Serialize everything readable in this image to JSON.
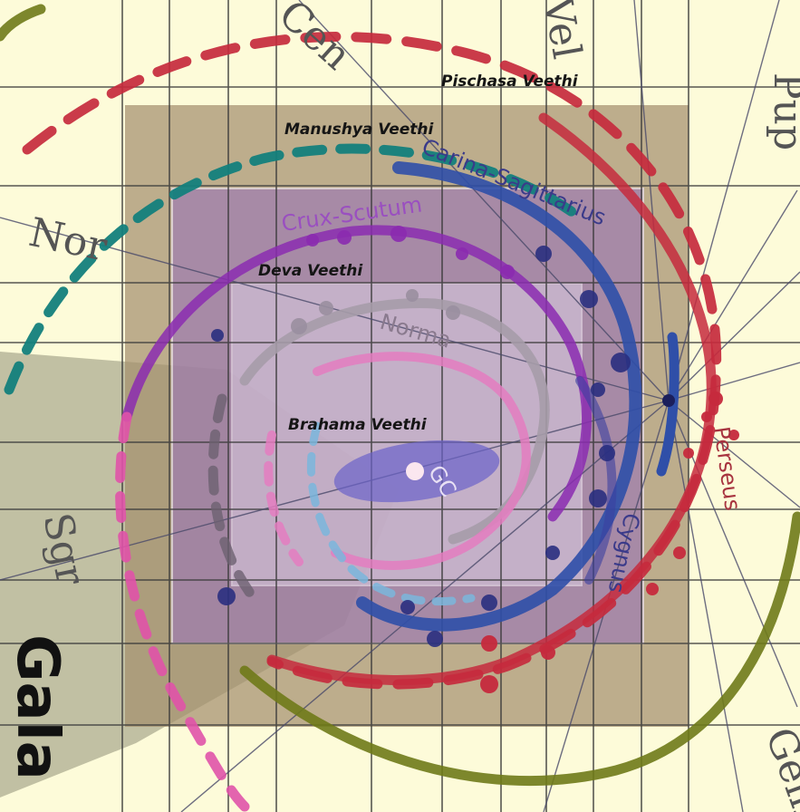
{
  "zones": [
    {
      "key": "pischasa",
      "label": "Pischasa  Veethi"
    },
    {
      "key": "manushya",
      "label": "Manushya Veethi"
    },
    {
      "key": "deva",
      "label": "Deva Veethi"
    },
    {
      "key": "brahama",
      "label": "Brahama Veethi"
    }
  ],
  "arms": {
    "carina_sagittarius": "Carina-Sagittarius",
    "crux_scutum": "Crux-Scutum",
    "norma": "Norma",
    "perseus": "Perseus",
    "cygnus": "Cygnus",
    "gc": "GC"
  },
  "constellations": {
    "cen": "Cen",
    "nor": "Nor",
    "sgr": "Sgr",
    "pup": "Pup",
    "gem": "Gem",
    "vel": "Vel"
  },
  "corner_text": "Gala",
  "colors": {
    "background": "#fdfbd9",
    "pischasa_zone": "#b8a585",
    "manushya_zone": "#a98ab0",
    "deva_zone": "#b7a4c6",
    "brahama_zone": "#d3c4dd",
    "red_arm": "#c62a3d",
    "blue_arm": "#2f4fa8",
    "purple_arm": "#8b2bb0",
    "grey_arm": "#a69ca8",
    "pink_arm": "#e053a8",
    "teal_arm": "#13807c",
    "olive_arm": "#6f7a18",
    "sun": "#1b1f5c"
  }
}
